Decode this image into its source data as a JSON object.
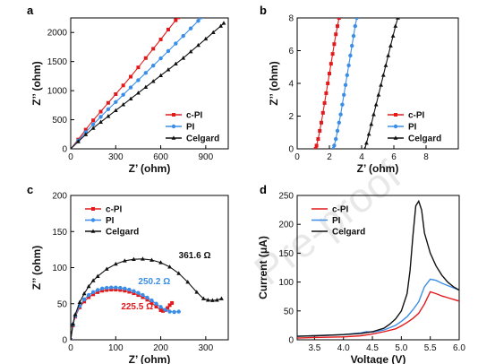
{
  "watermark": "Pre-proof",
  "chart_data": [
    {
      "id": "a",
      "panel_label": "a",
      "type": "line",
      "xlabel": "Z’ (ohm)",
      "ylabel": "Z’’ (ohm)",
      "xlim": [
        0,
        1050
      ],
      "ylim": [
        0,
        2250
      ],
      "xticks": [
        0,
        300,
        600,
        900
      ],
      "yticks": [
        0,
        500,
        1000,
        1500,
        2000
      ],
      "legend": "lower-right",
      "series": [
        {
          "name": "c-PI",
          "color": "#e31a1c",
          "marker": "square",
          "x": [
            0,
            50,
            100,
            150,
            200,
            250,
            300,
            350,
            400,
            450,
            500,
            550,
            600,
            650,
            700,
            717
          ],
          "y": [
            0,
            160,
            330,
            490,
            640,
            790,
            940,
            1090,
            1240,
            1400,
            1560,
            1720,
            1880,
            2050,
            2210,
            2260
          ]
        },
        {
          "name": "PI",
          "color": "#3b8ee8",
          "marker": "circle",
          "x": [
            0,
            50,
            100,
            150,
            200,
            250,
            300,
            350,
            400,
            450,
            500,
            550,
            600,
            650,
            700,
            750,
            800,
            850,
            870
          ],
          "y": [
            0,
            140,
            285,
            420,
            550,
            680,
            805,
            930,
            1055,
            1180,
            1305,
            1430,
            1555,
            1680,
            1810,
            1940,
            2070,
            2200,
            2260
          ]
        },
        {
          "name": "Celgard",
          "color": "#111111",
          "marker": "triangle",
          "x": [
            0,
            50,
            100,
            150,
            200,
            250,
            300,
            350,
            400,
            450,
            500,
            550,
            600,
            650,
            700,
            750,
            800,
            850,
            900,
            950,
            1000,
            1020
          ],
          "y": [
            0,
            125,
            245,
            355,
            460,
            560,
            660,
            760,
            860,
            960,
            1060,
            1160,
            1260,
            1360,
            1460,
            1560,
            1670,
            1780,
            1890,
            2000,
            2110,
            2160
          ]
        }
      ]
    },
    {
      "id": "b",
      "panel_label": "b",
      "type": "line",
      "xlabel": "Z’ (ohm)",
      "ylabel": "Z’’ (ohm)",
      "xlim": [
        0,
        10
      ],
      "ylim": [
        0,
        8
      ],
      "xticks": [
        0,
        2,
        4,
        6,
        8
      ],
      "yticks": [
        0,
        2,
        4,
        6,
        8
      ],
      "legend": "lower-right",
      "series": [
        {
          "name": "c-PI",
          "color": "#e31a1c",
          "marker": "square",
          "x": [
            1.15,
            1.2,
            1.3,
            1.4,
            1.5,
            1.6,
            1.7,
            1.8,
            1.9,
            2.0,
            2.1,
            2.2,
            2.3,
            2.4,
            2.5,
            2.6
          ],
          "y": [
            0,
            0.2,
            0.6,
            1.1,
            1.6,
            2.2,
            2.8,
            3.4,
            4.0,
            4.6,
            5.2,
            5.8,
            6.4,
            7.0,
            7.5,
            8.0
          ]
        },
        {
          "name": "PI",
          "color": "#3b8ee8",
          "marker": "circle",
          "x": [
            2.25,
            2.3,
            2.4,
            2.5,
            2.6,
            2.7,
            2.8,
            2.9,
            3.0,
            3.1,
            3.2,
            3.3,
            3.4,
            3.5,
            3.6,
            3.7
          ],
          "y": [
            0,
            0.2,
            0.6,
            1.1,
            1.6,
            2.1,
            2.7,
            3.3,
            3.9,
            4.5,
            5.1,
            5.7,
            6.3,
            6.9,
            7.5,
            8.0
          ]
        },
        {
          "name": "Celgard",
          "color": "#111111",
          "marker": "triangle",
          "x": [
            4.2,
            4.3,
            4.45,
            4.6,
            4.75,
            4.9,
            5.05,
            5.2,
            5.35,
            5.5,
            5.65,
            5.8,
            5.95,
            6.1,
            6.25
          ],
          "y": [
            0,
            0.35,
            0.9,
            1.5,
            2.1,
            2.7,
            3.3,
            3.9,
            4.5,
            5.1,
            5.7,
            6.3,
            6.9,
            7.5,
            8.0
          ]
        }
      ]
    },
    {
      "id": "c",
      "panel_label": "c",
      "type": "line",
      "xlabel": "Z’ (ohm)",
      "ylabel": "Z’’ (ohm)",
      "xlim": [
        0,
        350
      ],
      "ylim": [
        0,
        200
      ],
      "xticks": [
        0,
        100,
        200,
        300
      ],
      "yticks": [
        0,
        50,
        100,
        150,
        200
      ],
      "legend": "top-left",
      "annotations": [
        {
          "text": "361.6 Ω",
          "x": 240,
          "y": 113,
          "color": "#111111"
        },
        {
          "text": "250.2 Ω",
          "x": 150,
          "y": 77,
          "color": "#3b8ee8"
        },
        {
          "text": "225.5 Ω",
          "x": 112,
          "y": 42,
          "color": "#e31a1c"
        }
      ],
      "series": [
        {
          "name": "c-PI",
          "color": "#e31a1c",
          "marker": "square",
          "x": [
            0,
            5,
            10,
            20,
            30,
            40,
            50,
            60,
            70,
            80,
            90,
            100,
            110,
            120,
            130,
            140,
            150,
            160,
            170,
            180,
            190,
            200,
            205,
            210,
            215,
            220,
            225
          ],
          "y": [
            0,
            20,
            32,
            45,
            53,
            59,
            63,
            66,
            68,
            69,
            69.5,
            69.5,
            69,
            68,
            66.5,
            64.5,
            62,
            59,
            55.5,
            51,
            46,
            41,
            40,
            41,
            44,
            48,
            51
          ]
        },
        {
          "name": "PI",
          "color": "#3b8ee8",
          "marker": "circle",
          "x": [
            0,
            5,
            10,
            20,
            30,
            40,
            50,
            60,
            70,
            80,
            90,
            100,
            110,
            120,
            130,
            140,
            150,
            160,
            170,
            180,
            190,
            200,
            210,
            220,
            230,
            240
          ],
          "y": [
            0,
            21,
            33,
            47,
            56,
            62,
            66,
            69,
            71,
            72,
            72.5,
            72.5,
            72,
            71,
            69.5,
            67.5,
            65,
            62,
            58.5,
            54.5,
            50,
            45.5,
            41.5,
            39,
            38.5,
            39
          ]
        },
        {
          "name": "Celgard",
          "color": "#111111",
          "marker": "triangle",
          "x": [
            0,
            5,
            10,
            20,
            30,
            40,
            50,
            60,
            80,
            100,
            120,
            140,
            160,
            180,
            200,
            220,
            240,
            260,
            280,
            295,
            305,
            315,
            325,
            335
          ],
          "y": [
            0,
            22,
            35,
            52,
            64,
            74,
            82,
            88,
            98,
            105,
            109.5,
            111.5,
            112,
            110.5,
            107,
            101,
            92,
            80,
            66,
            57,
            55,
            54.5,
            55,
            57
          ]
        }
      ]
    },
    {
      "id": "d",
      "panel_label": "d",
      "type": "line",
      "xlabel": "Voltage (V)",
      "ylabel": "Current (μA)",
      "xlim": [
        3.2,
        6.0
      ],
      "ylim": [
        0,
        250
      ],
      "xticks": [
        3.5,
        4.0,
        4.5,
        5.0,
        5.5,
        6.0
      ],
      "yticks": [
        0,
        50,
        100,
        150,
        200,
        250
      ],
      "legend": "top-left",
      "series": [
        {
          "name": "c-PI",
          "color": "#e31a1c",
          "marker": "none",
          "x": [
            3.2,
            3.5,
            4.0,
            4.3,
            4.5,
            4.7,
            4.9,
            5.0,
            5.1,
            5.2,
            5.3,
            5.4,
            5.5,
            5.6,
            5.7,
            5.8,
            5.9,
            6.0
          ],
          "y": [
            3,
            4,
            5,
            7,
            10,
            14,
            19,
            24,
            30,
            37,
            46,
            62,
            83,
            80,
            76,
            73,
            70,
            67
          ]
        },
        {
          "name": "PI",
          "color": "#3b8ee8",
          "marker": "none",
          "x": [
            3.2,
            3.5,
            4.0,
            4.3,
            4.4,
            4.5,
            4.7,
            4.9,
            5.0,
            5.1,
            5.2,
            5.3,
            5.4,
            5.5,
            5.6,
            5.7,
            5.8,
            5.9,
            6.0
          ],
          "y": [
            6,
            7,
            9,
            12,
            14,
            13,
            17,
            25,
            32,
            40,
            52,
            66,
            92,
            105,
            103,
            98,
            94,
            90,
            86
          ]
        },
        {
          "name": "Celgard",
          "color": "#111111",
          "marker": "none",
          "x": [
            3.2,
            3.5,
            4.0,
            4.3,
            4.5,
            4.7,
            4.8,
            4.9,
            5.0,
            5.1,
            5.15,
            5.2,
            5.25,
            5.3,
            5.35,
            5.4,
            5.5,
            5.6,
            5.7,
            5.8,
            5.9,
            6.0
          ],
          "y": [
            6,
            7,
            9,
            11,
            14,
            20,
            27,
            36,
            50,
            80,
            120,
            180,
            232,
            240,
            225,
            185,
            150,
            128,
            112,
            100,
            92,
            86
          ]
        }
      ]
    }
  ]
}
